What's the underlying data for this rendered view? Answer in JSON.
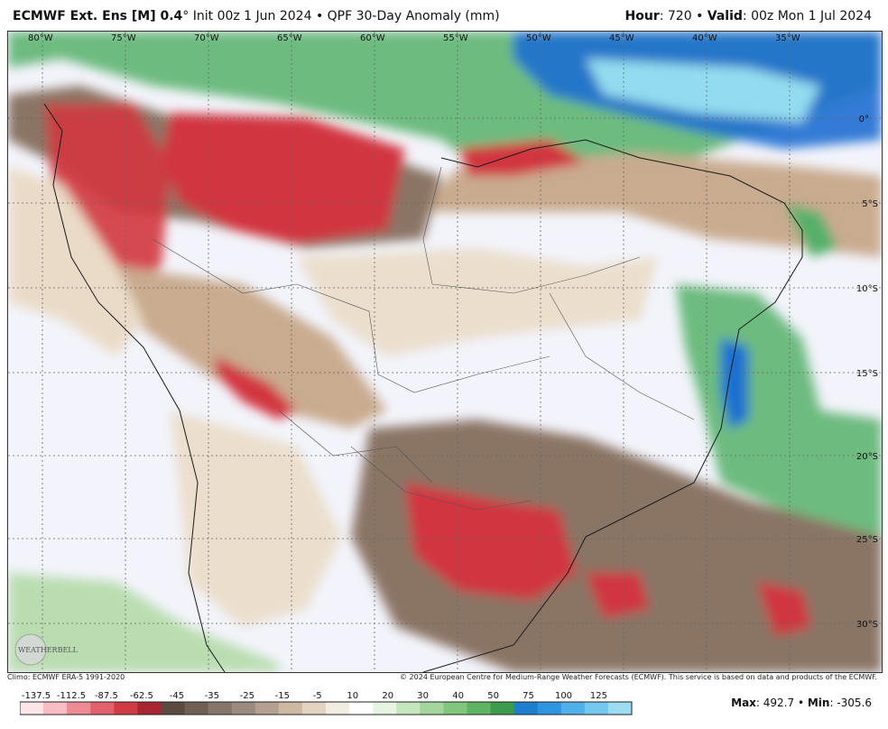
{
  "header": {
    "model_bold": "ECMWF Ext. Ens [M] 0.4",
    "model_suffix": "° Init 00z 1 Jun 2024 • QPF 30-Day Anomaly (mm)",
    "hour_label": "Hour",
    "hour_value": ": 720 • ",
    "valid_label": "Valid",
    "valid_value": ": 00z Mon 1 Jul 2024"
  },
  "map": {
    "lon_labels": [
      "80°W",
      "75°W",
      "70°W",
      "65°W",
      "60°W",
      "55°W",
      "50°W",
      "45°W",
      "40°W",
      "35°W"
    ],
    "lat_labels": [
      "0°",
      "5°S",
      "10°S",
      "15°S",
      "20°S",
      "25°S",
      "30°S"
    ],
    "colors": {
      "ocean_base": "#f3f4fb",
      "dry_light": "#eadbc8",
      "dry_mid": "#c9ab8f",
      "dry_dark": "#8a7565",
      "red": "#d1363f",
      "green_light": "#b9ddb0",
      "green": "#55b06a",
      "blue": "#1f6fd1",
      "cyan": "#93dcef"
    }
  },
  "logo": {
    "text": "WEATHERBELL"
  },
  "footer": {
    "climo": "Climo: ECMWF ERA-5 1991-2020",
    "copyright": "© 2024 European Centre for Medium-Range Weather Forecasts (ECMWF). This service is based on data and products of the ECMWF.",
    "max_label": "Max",
    "max_value": ": 492.7 • ",
    "min_label": "Min",
    "min_value": ": -305.6"
  },
  "colorbar": {
    "labels": [
      "-137.5",
      "-112.5",
      "-87.5",
      "-62.5",
      "-45",
      "-35",
      "-25",
      "-15",
      "-5",
      "10",
      "20",
      "30",
      "40",
      "50",
      "75",
      "100",
      "125"
    ],
    "colors": [
      "#fde6ea",
      "#f7bcc4",
      "#ee8b95",
      "#e2616c",
      "#cf3b44",
      "#a82630",
      "#5a4a40",
      "#6f5f54",
      "#85756a",
      "#9b8b7f",
      "#b3a091",
      "#ccb8a3",
      "#e2d3c1",
      "#f2ece2",
      "#ffffff",
      "#e6f4e2",
      "#c5e6bf",
      "#a3d69c",
      "#80c67c",
      "#5fb463",
      "#3c9b4c",
      "#1f7fcf",
      "#2f95e1",
      "#4fb0ea",
      "#74c8f0",
      "#9cddf4"
    ]
  }
}
